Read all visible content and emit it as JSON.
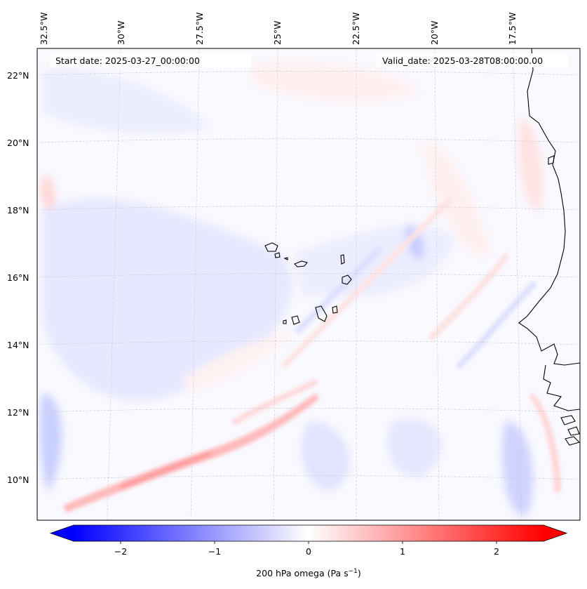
{
  "map": {
    "start_label": "Start date: 2025-03-27_00:00:00",
    "valid_label": "Valid_date: 2025-03-28T08:00:00.00",
    "lon_labels": [
      "32.5°W",
      "30°W",
      "27.5°W",
      "25°W",
      "22.5°W",
      "20°W",
      "17.5°W"
    ],
    "lat_labels": [
      "22°N",
      "20°N",
      "18°N",
      "16°N",
      "14°N",
      "12°N",
      "10°N"
    ],
    "variable": "200 hPa omega",
    "units_prefix": "(Pa s",
    "units_exp": "−1",
    "units_suffix": ")",
    "coastline_color": "#000000",
    "colormap": "bwr"
  },
  "colorbar": {
    "ticks": [
      "−2",
      "−1",
      "0",
      "1",
      "2"
    ],
    "tick_values": [
      -2,
      -1,
      0,
      1,
      2
    ],
    "range": [
      -2.5,
      2.5
    ],
    "low_color": "#0000ff",
    "mid_color": "#ffffff",
    "high_color": "#ff0000"
  }
}
